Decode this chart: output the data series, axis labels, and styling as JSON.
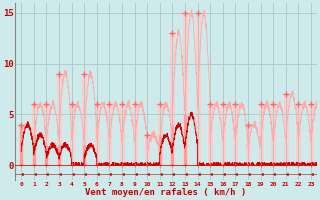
{
  "xlabel": "Vent moyen/en rafales ( km/h )",
  "bg_color": "#ceeaea",
  "grid_color": "#aac8c8",
  "xlim": [
    -0.5,
    23.5
  ],
  "ylim": [
    -1.5,
    16
  ],
  "yticks": [
    0,
    5,
    10,
    15
  ],
  "xtick_labels": [
    "0",
    "1",
    "2",
    "3",
    "4",
    "5",
    "6",
    "7",
    "8",
    "9",
    "10",
    "11",
    "12",
    "13",
    "14",
    "15",
    "16",
    "17",
    "18",
    "19",
    "20",
    "21",
    "22",
    "23"
  ],
  "avg_color": "#cc0000",
  "gust_color": "#ffaaaa",
  "marker_color": "#ff6666",
  "gust_tops": [
    4,
    6,
    6,
    9,
    6,
    9,
    6,
    6,
    6,
    6,
    3,
    6,
    13,
    15,
    15,
    6,
    6,
    6,
    4,
    6,
    6,
    7,
    6,
    6
  ],
  "avg_tops": [
    4,
    3,
    2,
    2,
    0,
    2,
    0,
    0,
    0,
    0,
    0,
    3,
    4,
    5,
    0,
    0,
    0,
    0,
    0,
    0,
    0,
    0,
    0,
    0
  ],
  "spine_color": "#888888"
}
